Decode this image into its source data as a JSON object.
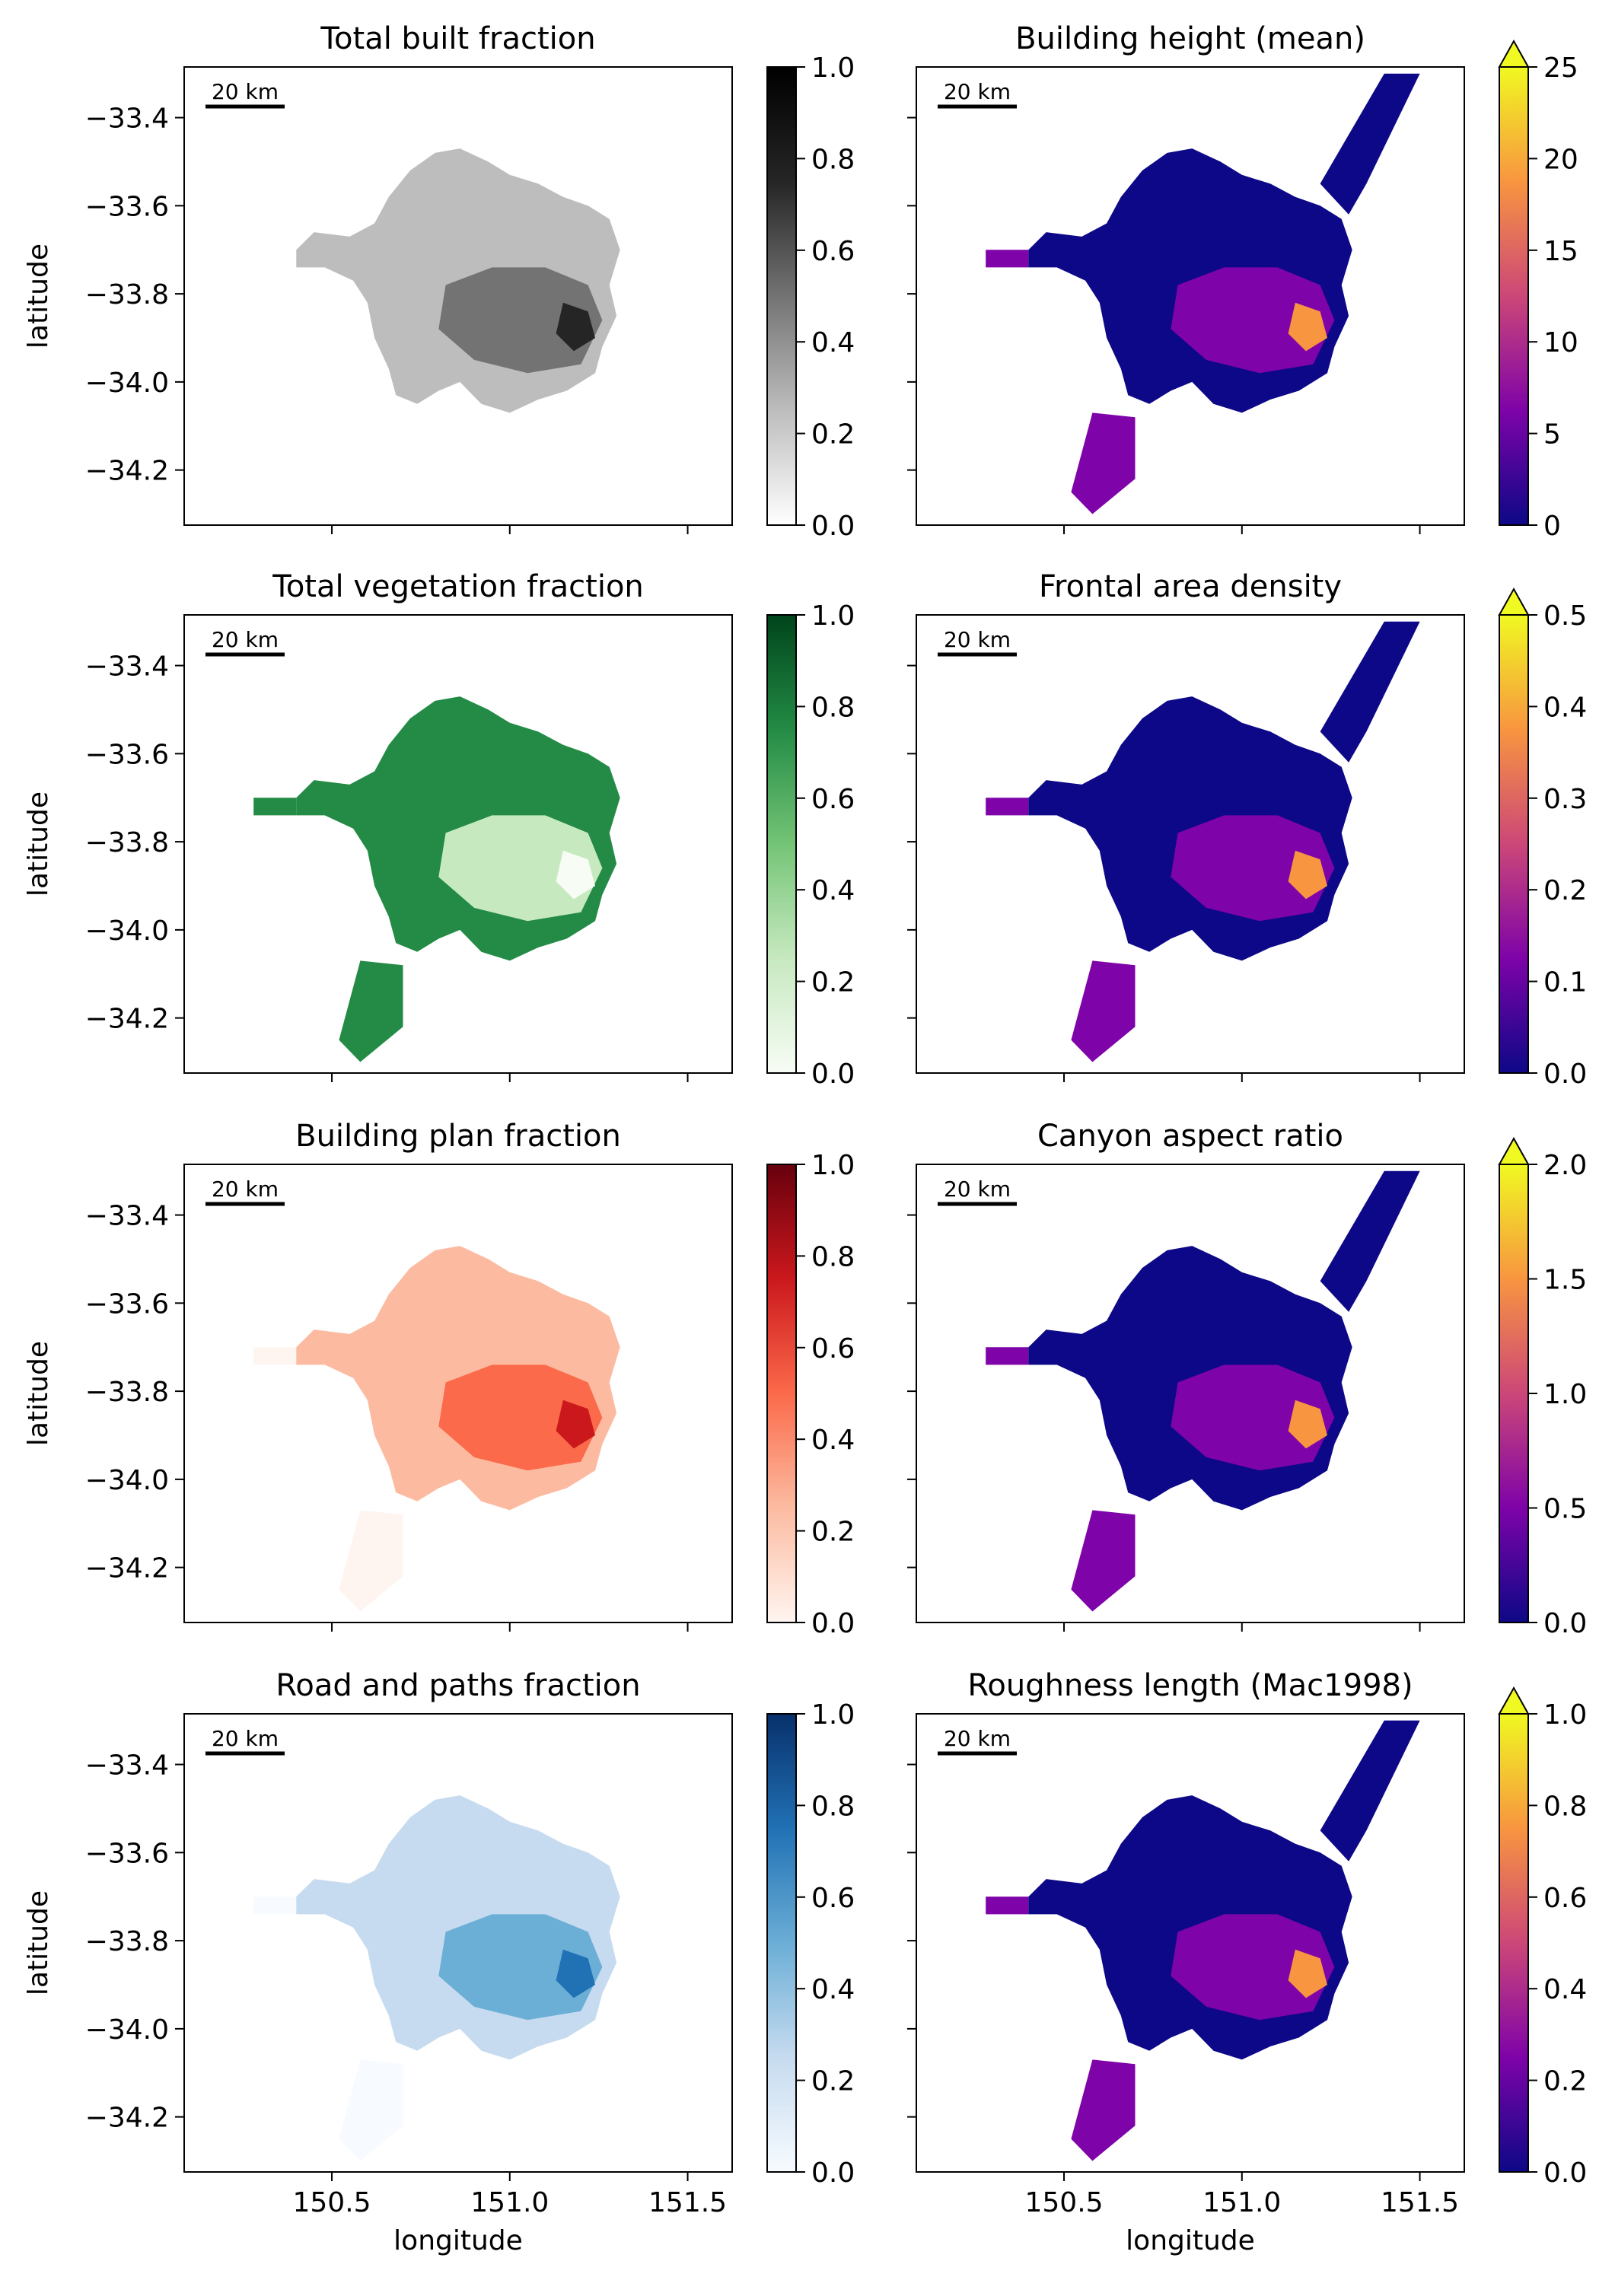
{
  "figure": {
    "xlabel": "longitude",
    "ylabel": "latitude",
    "xticks": [
      "150.5",
      "151.0",
      "151.5"
    ],
    "yticks": [
      "−33.4",
      "−33.6",
      "−33.8",
      "−34.0",
      "−34.2"
    ],
    "scalebar_label": "20 km"
  },
  "panels": [
    {
      "title": "Total built fraction",
      "colormap": "Greys",
      "cbar_ticks": [
        "0.0",
        "0.2",
        "0.4",
        "0.6",
        "0.8",
        "1.0"
      ],
      "extend_max": false,
      "show_ylabel": true,
      "show_xlabel": false
    },
    {
      "title": "Building height (mean)",
      "colormap": "plasma",
      "cbar_ticks": [
        "0",
        "5",
        "10",
        "15",
        "20",
        "25"
      ],
      "extend_max": true,
      "show_ylabel": false,
      "show_xlabel": false
    },
    {
      "title": "Total vegetation fraction",
      "colormap": "Greens",
      "cbar_ticks": [
        "0.0",
        "0.2",
        "0.4",
        "0.6",
        "0.8",
        "1.0"
      ],
      "extend_max": false,
      "show_ylabel": true,
      "show_xlabel": false
    },
    {
      "title": "Frontal area density",
      "colormap": "plasma",
      "cbar_ticks": [
        "0.0",
        "0.1",
        "0.2",
        "0.3",
        "0.4",
        "0.5"
      ],
      "extend_max": true,
      "show_ylabel": false,
      "show_xlabel": false
    },
    {
      "title": "Building plan fraction",
      "colormap": "Reds",
      "cbar_ticks": [
        "0.0",
        "0.2",
        "0.4",
        "0.6",
        "0.8",
        "1.0"
      ],
      "extend_max": false,
      "show_ylabel": true,
      "show_xlabel": false
    },
    {
      "title": "Canyon aspect ratio",
      "colormap": "plasma",
      "cbar_ticks": [
        "0.0",
        "0.5",
        "1.0",
        "1.5",
        "2.0"
      ],
      "extend_max": true,
      "show_ylabel": false,
      "show_xlabel": false
    },
    {
      "title": "Road and paths fraction",
      "colormap": "Blues",
      "cbar_ticks": [
        "0.0",
        "0.2",
        "0.4",
        "0.6",
        "0.8",
        "1.0"
      ],
      "extend_max": false,
      "show_ylabel": true,
      "show_xlabel": true
    },
    {
      "title": "Roughness length (Mac1998)",
      "colormap": "plasma",
      "cbar_ticks": [
        "0.0",
        "0.2",
        "0.4",
        "0.6",
        "0.8",
        "1.0"
      ],
      "extend_max": true,
      "show_ylabel": false,
      "show_xlabel": true
    }
  ],
  "colormaps": {
    "Greys": [
      "#ffffff",
      "#bdbdbd",
      "#737373",
      "#252525",
      "#000000"
    ],
    "Greens": [
      "#f7fcf5",
      "#c7e9c0",
      "#74c476",
      "#238b45",
      "#00441b"
    ],
    "Reds": [
      "#fff5f0",
      "#fcbba1",
      "#fb6a4a",
      "#cb181d",
      "#67000d"
    ],
    "Blues": [
      "#f7fbff",
      "#c6dbef",
      "#6baed6",
      "#2171b5",
      "#08306b"
    ],
    "plasma": [
      "#0d0887",
      "#7e03a8",
      "#cc4778",
      "#f89540",
      "#f0f921"
    ]
  }
}
